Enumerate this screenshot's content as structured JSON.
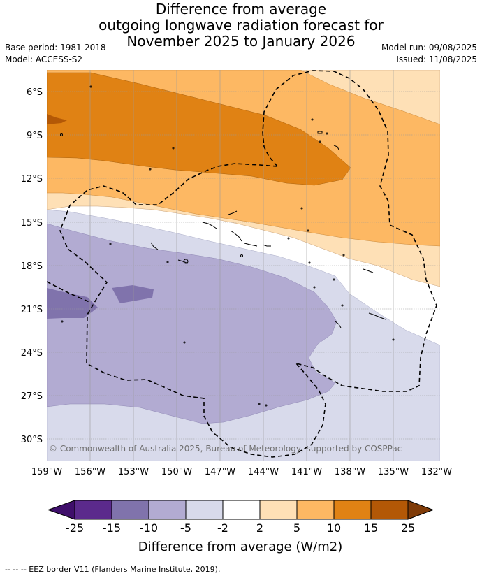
{
  "title": {
    "line1": "Difference from average",
    "line2": "outgoing longwave radiation forecast for",
    "line3": "November 2025 to January 2026"
  },
  "meta": {
    "base_period": "Base period: 1981-2018",
    "model": "Model: ACCESS-S2",
    "model_run": "Model run: 09/08/2025",
    "issued": "Issued: 11/08/2025"
  },
  "map": {
    "lat_labels": [
      "6°S",
      "9°S",
      "12°S",
      "15°S",
      "18°S",
      "21°S",
      "24°S",
      "27°S",
      "30°S"
    ],
    "lon_labels": [
      "159°W",
      "156°W",
      "153°W",
      "150°W",
      "147°W",
      "144°W",
      "141°W",
      "138°W",
      "135°W",
      "132°W"
    ],
    "copyright": "© Commonwealth of Australia 2025, Bureau of Meteorology, supported by COSPPac"
  },
  "colorbar": {
    "title": "Difference from average (W/m2)",
    "ticks": [
      "-25",
      "-15",
      "-10",
      "-5",
      "-2",
      "2",
      "5",
      "10",
      "15",
      "25"
    ],
    "colors": [
      "#3f0f6b",
      "#5b2a8c",
      "#8073ac",
      "#b2abd2",
      "#d8daeb",
      "#ffffff",
      "#fee0b6",
      "#fdb863",
      "#e08214",
      "#b35806",
      "#7f3b08"
    ]
  },
  "footer": "--  --  -- EEZ border V11 (Flanders Marine Institute, 2019)."
}
